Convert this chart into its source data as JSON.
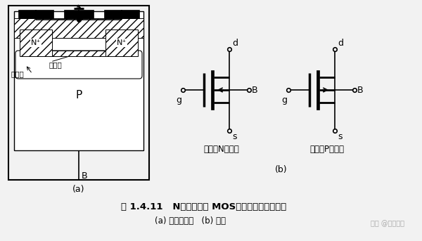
{
  "bg_color": "#f2f2f2",
  "title_text": "图 1.4.11   N沟道耗尽型 MOS管结构示意图及符号",
  "subtitle_text": "(a) 结构示意图   (b) 符号",
  "watermark": "知乎 @空空气息",
  "label_a": "(a)",
  "label_b": "(b)",
  "label_fanxing": "反型层",
  "label_haojin": "耗尽层",
  "label_P": "P",
  "label_B_struct": "B",
  "label_N1": "N⁺",
  "label_N2": "N⁺",
  "label_depl_N": "耗尽型N沟道管",
  "label_depl_P": "耗尽型P沟道管",
  "label_d1": "d",
  "label_s1": "s",
  "label_g1": "g",
  "label_B1": "B",
  "label_d2": "d",
  "label_s2": "s",
  "label_g2": "g",
  "label_B2": "B"
}
